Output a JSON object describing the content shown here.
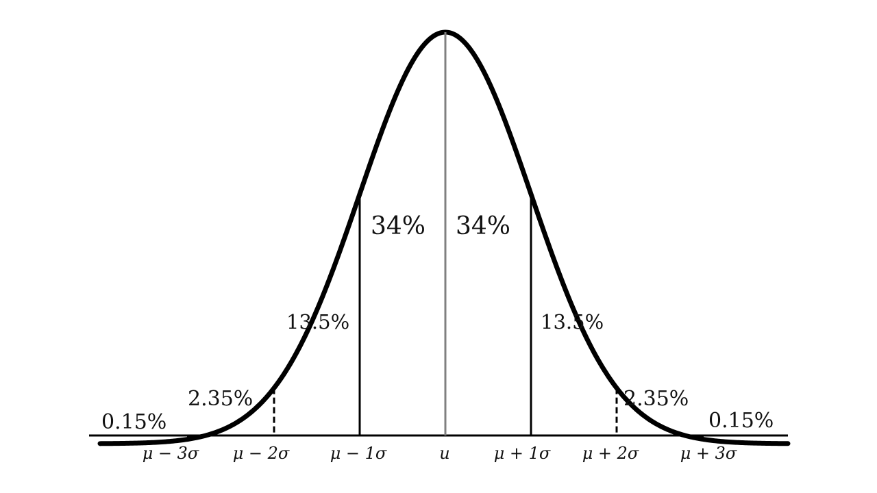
{
  "colors": {
    "curve": "#000000",
    "axis": "#000000",
    "mean_line": "#808080",
    "sigma1_line": "#000000",
    "sigma2_line": "#000000",
    "sigma3_line": "#000000",
    "text": "#111111"
  },
  "regions": [
    {
      "key": "left_tail",
      "label": "0.15%"
    },
    {
      "key": "left_3sigma",
      "label": "2.35%"
    },
    {
      "key": "left_2sigma",
      "label": "13.5%"
    },
    {
      "key": "left_1sigma",
      "label": "34%"
    },
    {
      "key": "right_1sigma",
      "label": "34%"
    },
    {
      "key": "right_2sigma",
      "label": "13.5%"
    },
    {
      "key": "right_3sigma",
      "label": "2.35%"
    },
    {
      "key": "right_tail",
      "label": "0.15%"
    }
  ],
  "ticks": [
    {
      "key": "m3",
      "label": "μ − 3σ"
    },
    {
      "key": "m2",
      "label": "μ − 2σ"
    },
    {
      "key": "m1",
      "label": "μ − 1σ"
    },
    {
      "key": "mu",
      "label": "u"
    },
    {
      "key": "p1",
      "label": "μ + 1σ"
    },
    {
      "key": "p2",
      "label": "μ + 2σ"
    },
    {
      "key": "p3",
      "label": "μ + 3σ"
    }
  ]
}
